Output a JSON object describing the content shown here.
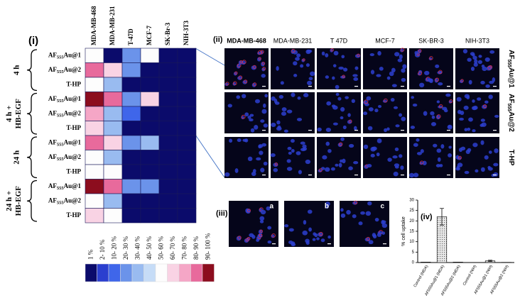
{
  "heatmap": {
    "panel": "(i)",
    "columns": [
      "MDA-MB-468",
      "MDA-MB-231",
      "T-47D",
      "MCF-7",
      "SK-Br-3",
      "NIH-3T3"
    ],
    "groups": [
      {
        "label": [
          "4 h"
        ],
        "rows": [
          {
            "label": {
              "pre": "AF",
              "sub": "555",
              "post": "Au@1"
            },
            "levels": [
              6,
              0,
              3,
              6,
              0,
              0
            ]
          },
          {
            "label": {
              "pre": "AF",
              "sub": "555",
              "post": "Au@2"
            },
            "levels": [
              9,
              7,
              3,
              0,
              0,
              0
            ]
          },
          {
            "label": {
              "pre": "T-HP"
            },
            "levels": [
              6,
              4,
              0,
              0,
              0,
              0
            ]
          }
        ]
      },
      {
        "label": [
          "4 h +",
          "HB-EGF"
        ],
        "rows": [
          {
            "label": {
              "pre": "AF",
              "sub": "555",
              "post": "Au@1"
            },
            "levels": [
              10,
              9,
              3,
              7,
              0,
              0
            ]
          },
          {
            "label": {
              "pre": "AF",
              "sub": "555",
              "post": "Au@2"
            },
            "levels": [
              8,
              4,
              2,
              0,
              0,
              0
            ]
          },
          {
            "label": {
              "pre": "T-HP"
            },
            "levels": [
              7,
              4,
              0,
              0,
              0,
              0
            ]
          }
        ]
      },
      {
        "label": [
          "24 h"
        ],
        "rows": [
          {
            "label": {
              "pre": "AF",
              "sub": "555",
              "post": "Au@1"
            },
            "levels": [
              9,
              7,
              3,
              4,
              0,
              0
            ]
          },
          {
            "label": {
              "pre": "AF",
              "sub": "555",
              "post": "Au@2"
            },
            "levels": [
              6,
              4,
              0,
              0,
              0,
              0
            ]
          },
          {
            "label": {
              "pre": "T-HP"
            },
            "levels": [
              6,
              6,
              0,
              0,
              0,
              0
            ]
          }
        ]
      },
      {
        "label": [
          "24 h +",
          "HB-EGF"
        ],
        "rows": [
          {
            "label": {
              "pre": "AF",
              "sub": "555",
              "post": "Au@1"
            },
            "levels": [
              10,
              9,
              3,
              3,
              0,
              0
            ]
          },
          {
            "label": {
              "pre": "AF",
              "sub": "555",
              "post": "Au@2"
            },
            "levels": [
              6,
              4,
              0,
              0,
              0,
              0
            ]
          },
          {
            "label": {
              "pre": "T-HP"
            },
            "levels": [
              7,
              6,
              0,
              0,
              0,
              0
            ]
          }
        ]
      }
    ],
    "legend": {
      "labels": [
        "1 %",
        "2- 10 %",
        "10- 20 %",
        "20- 30 %",
        "30- 40 %",
        "40- 50 %",
        "50- 60 %",
        "60- 70 %",
        "70- 80 %",
        "80- 90 %",
        "90- 100 %"
      ],
      "colors": [
        "#0b0b6b",
        "#2b3fcf",
        "#3f66ea",
        "#6b93ea",
        "#99bbf0",
        "#c6dcf7",
        "#fdfdfd",
        "#f9d3e4",
        "#f5a6c6",
        "#e86a9c",
        "#8c0d1e"
      ]
    }
  },
  "micrographs": {
    "panel": "(ii)",
    "columns": [
      "MDA-MB-468",
      "MDA-MB-231",
      "T 47D",
      "MCF-7",
      "SK-BR-3",
      "NIH-3T3"
    ],
    "rows": [
      {
        "pre": "AF",
        "sub": "555",
        "post": "Au@1"
      },
      {
        "pre": "AF",
        "sub": "555",
        "post": "Au@2"
      },
      {
        "pre": "T-HP"
      }
    ]
  },
  "panel_iii": {
    "panel": "(iii)",
    "images": [
      "a",
      "b",
      "c"
    ]
  },
  "chart_data": {
    "type": "bar",
    "panel": "(iv)",
    "ylabel": "% cell uptake",
    "categories": [
      "Control (MDA)",
      "AF555Au@1 (MDA)",
      "AF555Au@2 (MDA)",
      "Control (NIH)",
      "AF555Au@1 (NIH)",
      "AF555Au@2 (NIH)"
    ],
    "values": [
      0.2,
      22,
      0.2,
      0,
      0.8,
      0.1
    ],
    "errors": [
      0,
      4,
      0,
      0,
      0.3,
      0
    ],
    "color": "#cfcfcf",
    "ylim": [
      0,
      30
    ],
    "yticks": [
      0,
      5,
      10,
      15,
      20,
      25,
      30
    ]
  }
}
